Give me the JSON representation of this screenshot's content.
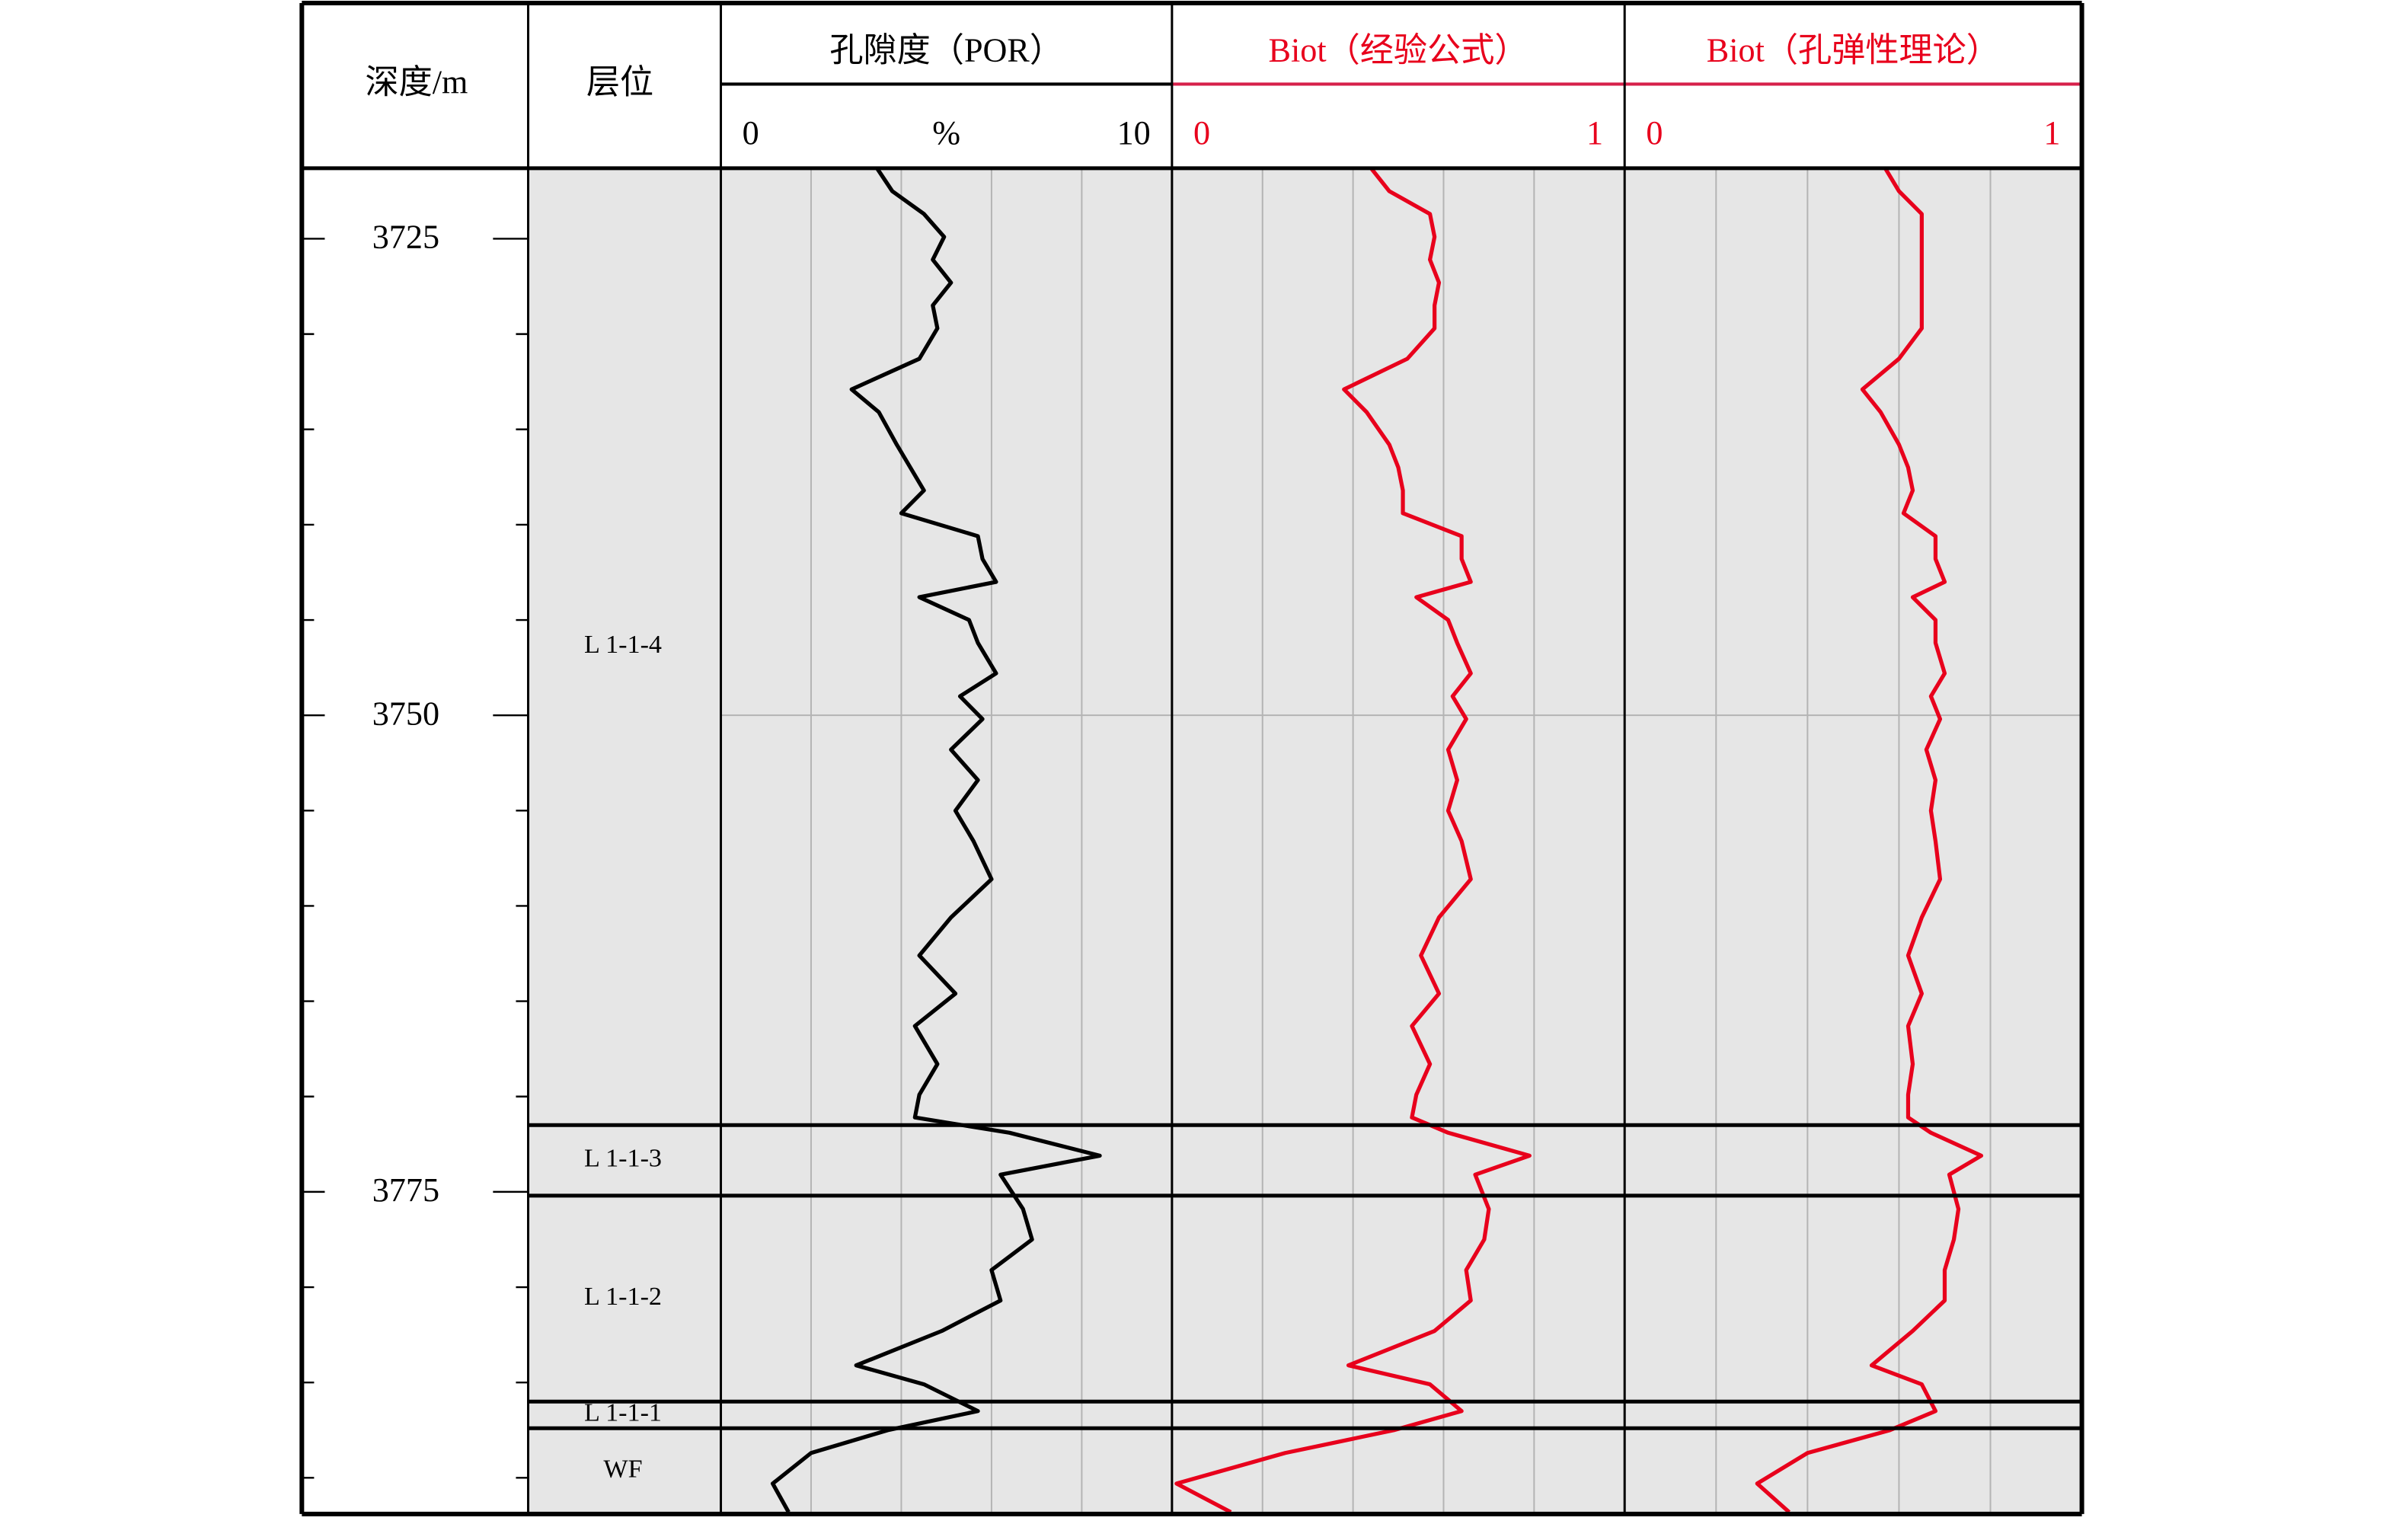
{
  "chart_data": {
    "type": "well-log",
    "depth_label": "深度/m",
    "zone_label": "层位",
    "ylim": [
      3721.3,
      3791.9
    ],
    "yticks": [
      3725,
      3750,
      3775
    ],
    "minor_yticks": [
      3730,
      3735,
      3740,
      3745,
      3755,
      3760,
      3765,
      3770,
      3780,
      3785,
      3790
    ],
    "grid_depths": [
      3750
    ],
    "zones": [
      {
        "name": "L 1-1-4",
        "top": 3721.3,
        "base": 3771.5
      },
      {
        "name": "L 1-1-3",
        "top": 3771.5,
        "base": 3775.2
      },
      {
        "name": "L 1-1-2",
        "top": 3775.2,
        "base": 3786.0
      },
      {
        "name": "L 1-1-1",
        "top": 3786.0,
        "base": 3787.4
      },
      {
        "name": "WF",
        "top": 3787.4,
        "base": 3791.9
      }
    ],
    "depth": [
      3721.3,
      3722.5,
      3723.7,
      3724.9,
      3726.1,
      3727.3,
      3728.5,
      3729.7,
      3731.3,
      3732.9,
      3734.1,
      3735.8,
      3737.0,
      3738.2,
      3739.4,
      3740.6,
      3741.8,
      3743.0,
      3743.8,
      3745.0,
      3746.2,
      3747.8,
      3749.0,
      3750.2,
      3751.8,
      3753.4,
      3755.0,
      3756.6,
      3758.6,
      3760.6,
      3762.6,
      3764.6,
      3766.3,
      3768.3,
      3769.9,
      3771.1,
      3771.9,
      3773.1,
      3774.1,
      3775.9,
      3777.5,
      3779.1,
      3780.7,
      3782.3,
      3784.1,
      3785.1,
      3786.5,
      3787.5,
      3788.7,
      3790.3,
      3791.8
    ],
    "tracks": [
      {
        "title": "孔隙度（POR）",
        "unit": "%",
        "color": "#000000",
        "xlim": [
          0,
          10
        ],
        "xticks": [
          0,
          10
        ],
        "gridlines": [
          2,
          4,
          6,
          8
        ],
        "values": [
          3.46,
          3.8,
          4.5,
          4.95,
          4.7,
          5.1,
          4.7,
          4.8,
          4.4,
          2.9,
          3.5,
          3.9,
          4.2,
          4.5,
          4.0,
          5.7,
          5.8,
          6.1,
          4.4,
          5.5,
          5.7,
          6.1,
          5.3,
          5.8,
          5.1,
          5.7,
          5.2,
          5.6,
          6.0,
          5.1,
          4.4,
          5.2,
          4.3,
          4.8,
          4.4,
          4.3,
          6.4,
          8.4,
          6.2,
          6.7,
          6.9,
          6.0,
          6.2,
          4.9,
          3.0,
          4.5,
          5.7,
          3.7,
          2.0,
          1.15,
          1.5
        ]
      },
      {
        "title": "Biot（经验公式）",
        "color": "#e8001c",
        "xlim": [
          0,
          1
        ],
        "xticks": [
          0,
          1
        ],
        "gridlines": [
          0.2,
          0.4,
          0.6,
          0.8
        ],
        "values": [
          0.44,
          0.48,
          0.57,
          0.58,
          0.57,
          0.59,
          0.58,
          0.58,
          0.52,
          0.38,
          0.43,
          0.48,
          0.5,
          0.51,
          0.51,
          0.64,
          0.64,
          0.66,
          0.54,
          0.61,
          0.63,
          0.66,
          0.62,
          0.65,
          0.61,
          0.63,
          0.61,
          0.64,
          0.66,
          0.59,
          0.55,
          0.59,
          0.53,
          0.57,
          0.54,
          0.53,
          0.61,
          0.79,
          0.67,
          0.7,
          0.69,
          0.65,
          0.66,
          0.58,
          0.39,
          0.57,
          0.64,
          0.49,
          0.25,
          0.01,
          0.13
        ]
      },
      {
        "title": "Biot（孔弹性理论）",
        "color": "#e8001c",
        "xlim": [
          0,
          1
        ],
        "xticks": [
          0,
          1
        ],
        "gridlines": [
          0.2,
          0.4,
          0.6,
          0.8
        ],
        "values": [
          0.57,
          0.6,
          0.65,
          0.65,
          0.65,
          0.65,
          0.65,
          0.65,
          0.6,
          0.52,
          0.56,
          0.6,
          0.62,
          0.63,
          0.61,
          0.68,
          0.68,
          0.7,
          0.63,
          0.68,
          0.68,
          0.7,
          0.67,
          0.69,
          0.66,
          0.68,
          0.67,
          0.68,
          0.69,
          0.65,
          0.62,
          0.65,
          0.62,
          0.63,
          0.62,
          0.62,
          0.67,
          0.78,
          0.71,
          0.73,
          0.72,
          0.7,
          0.7,
          0.63,
          0.54,
          0.65,
          0.68,
          0.58,
          0.4,
          0.29,
          0.36
        ]
      }
    ]
  }
}
